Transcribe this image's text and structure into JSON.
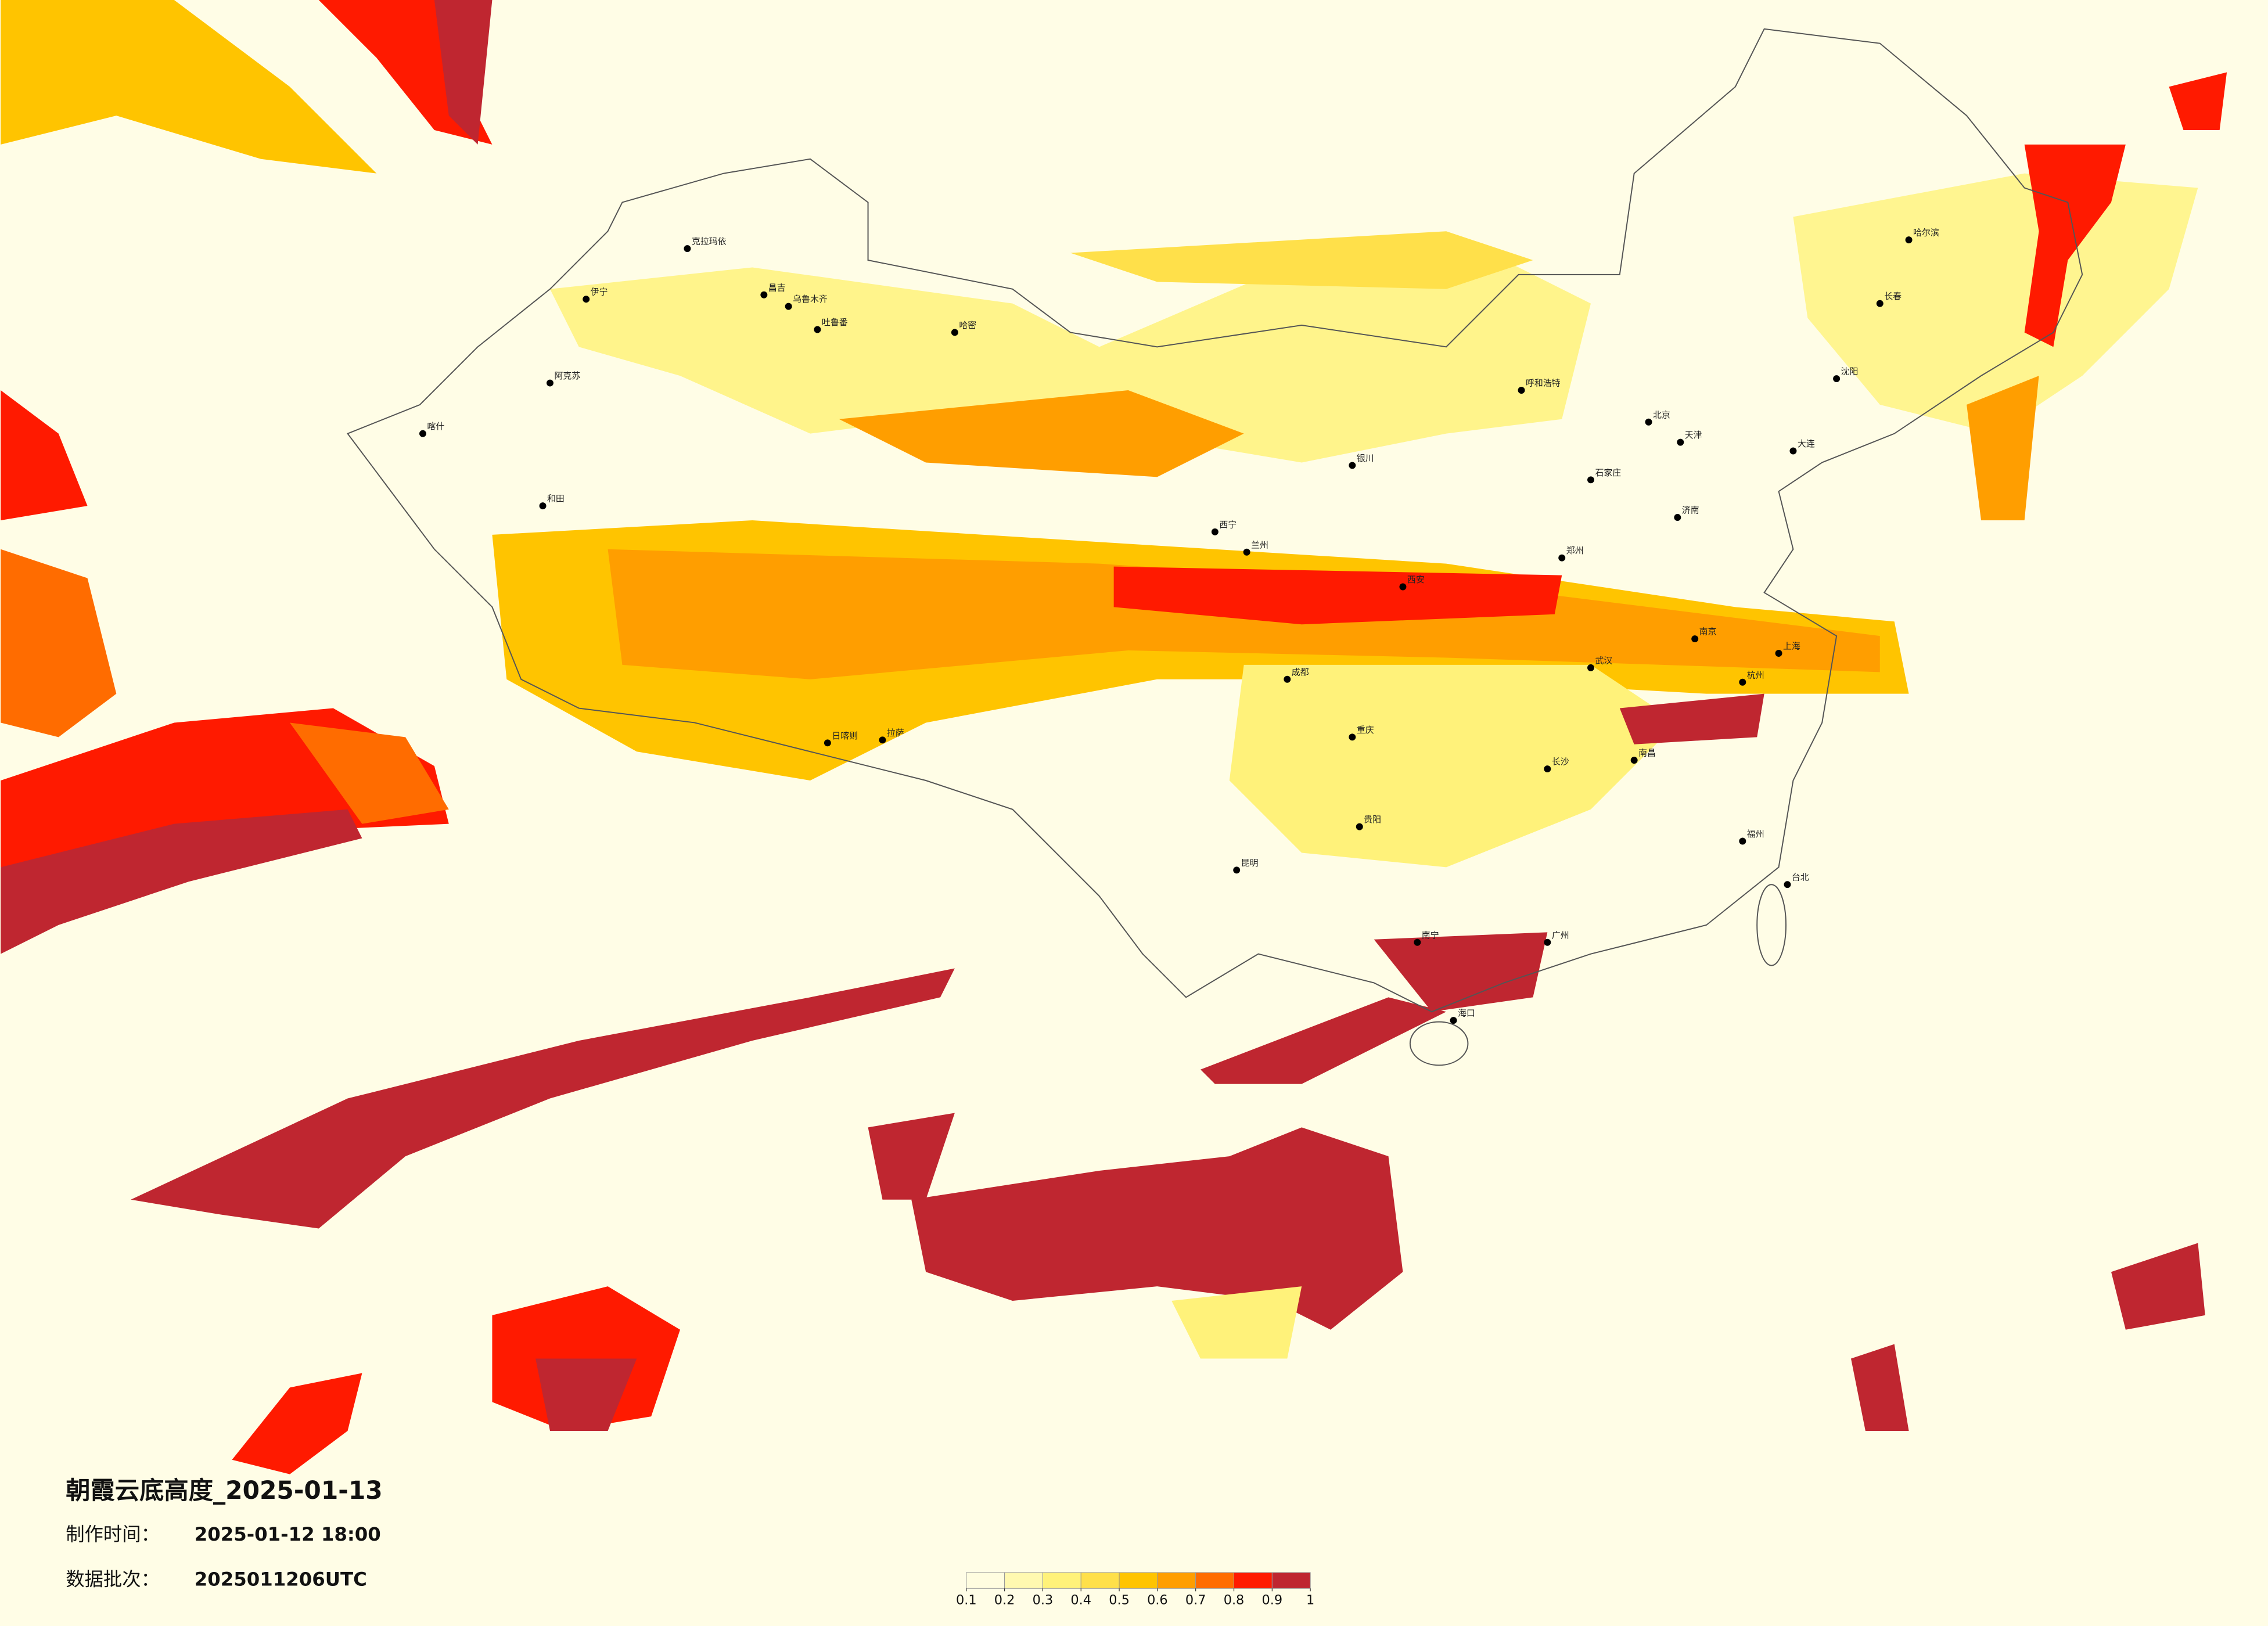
{
  "title": "朝霞云底高度_2025-01-13",
  "info": [
    {
      "label": "制作时间：",
      "value": "2025-01-12 18:00"
    },
    {
      "label": "数据批次：",
      "value": "2025011206UTC"
    }
  ],
  "colorbar": {
    "ticks": [
      0.1,
      0.2,
      0.3,
      0.4,
      0.5,
      0.6,
      0.7,
      0.8,
      0.9,
      1
    ],
    "colors": [
      "#fffde0",
      "#fff9b0",
      "#fff27a",
      "#ffe04a",
      "#ffc400",
      "#ff9e00",
      "#ff6c00",
      "#ff1a00",
      "#bf2630"
    ]
  },
  "cities": [
    "克拉玛依",
    "伊宁",
    "昌吉",
    "乌鲁木齐",
    "吐鲁番",
    "哈密",
    "阿克苏",
    "喀什",
    "和田",
    "拉萨",
    "日喀则",
    "西宁",
    "兰州",
    "银川",
    "呼和浩特",
    "北京",
    "天津",
    "石家庄",
    "济南",
    "郑州",
    "西安",
    "成都",
    "重庆",
    "武汉",
    "南京",
    "上海",
    "杭州",
    "长沙",
    "南昌",
    "福州",
    "广州",
    "南宁",
    "贵阳",
    "昆明",
    "海口",
    "哈尔滨",
    "长春",
    "沈阳",
    "大连",
    "台北"
  ]
}
